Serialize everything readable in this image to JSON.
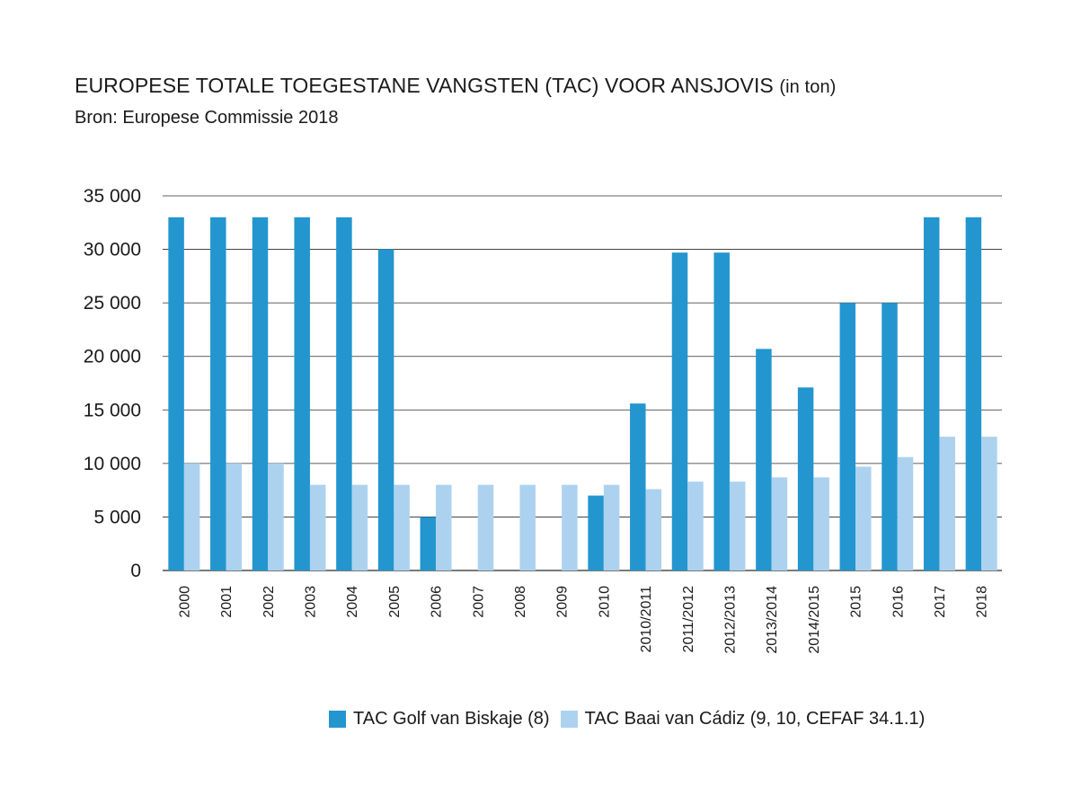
{
  "colors": {
    "biskaje": "#2396cf",
    "cadiz": "#acd2f0",
    "grid": "#2a2a2a"
  },
  "chart_data": {
    "type": "bar",
    "title": "EUROPESE TOTALE TOEGESTANE VANGSTEN (TAC) VOOR ANSJOVIS",
    "title_unit": "(in ton)",
    "subtitle": "Bron: Europese Commissie 2018",
    "categories": [
      "2000",
      "2001",
      "2002",
      "2003",
      "2004",
      "2005",
      "2006",
      "2007",
      "2008",
      "2009",
      "2010",
      "2010/2011",
      "2011/2012",
      "2012/2013",
      "2013/2014",
      "2014/2015",
      "2015",
      "2016",
      "2017",
      "2018"
    ],
    "series": [
      {
        "name": "TAC Golf van Biskaje (8)",
        "values": [
          33000,
          33000,
          33000,
          33000,
          33000,
          30000,
          5000,
          0,
          0,
          0,
          7000,
          15600,
          29700,
          29700,
          20700,
          17100,
          25000,
          25000,
          33000,
          33000
        ]
      },
      {
        "name": "TAC Baai van Cádiz (9, 10, CEFAF 34.1.1)",
        "values": [
          10000,
          10000,
          10000,
          8000,
          8000,
          8000,
          8000,
          8000,
          8000,
          8000,
          8000,
          7600,
          8300,
          8300,
          8700,
          8700,
          9700,
          10600,
          12500,
          12500
        ]
      }
    ],
    "ylim": [
      0,
      35000
    ],
    "yticks": [
      0,
      5000,
      10000,
      15000,
      20000,
      25000,
      30000,
      35000
    ],
    "ytick_labels": [
      "0",
      "5 000",
      "10 000",
      "15 000",
      "20 000",
      "25 000",
      "30 000",
      "35 000"
    ],
    "grid": true,
    "legend_position": "bottom-right"
  }
}
